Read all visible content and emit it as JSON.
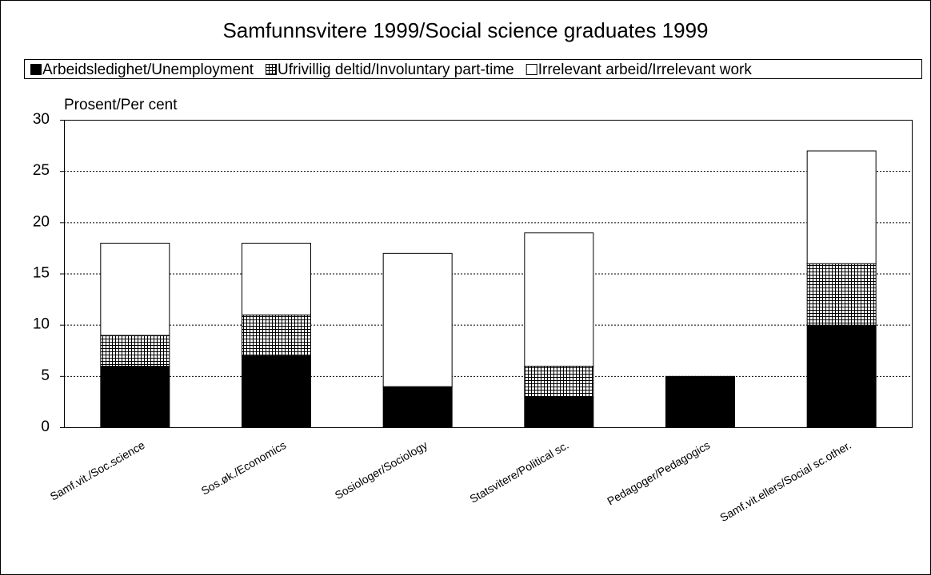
{
  "chart_data": {
    "type": "stacked_bar",
    "title": "Samfunnsvitere 1999/Social science graduates 1999",
    "y_label": "Prosent/Per cent",
    "categories": [
      "Samf.vit./Soc.science",
      "Sos.øk./Economics",
      "Sosiologer/Sociology",
      "Statsvitere/Political sc.",
      "Pedagoger/Pedagogics",
      "Samf.vit.ellers/Social sc.other."
    ],
    "series": [
      {
        "name": "Arbeidsledighet/Unemployment",
        "color": "#000000",
        "values": [
          6,
          7,
          4,
          3,
          5,
          10
        ]
      },
      {
        "name": "Ufrivillig deltid/Involuntary part-time",
        "color": "#000000",
        "hatch": true,
        "values": [
          3,
          4,
          0,
          3,
          0,
          6
        ]
      },
      {
        "name": "Irrelevant arbeid/Irrelevant work",
        "color": "#ffffff",
        "values": [
          9,
          7,
          13,
          13,
          0,
          11
        ]
      }
    ],
    "ylim": [
      0,
      30
    ],
    "yticks": [
      0,
      5,
      10,
      15,
      20,
      25,
      30
    ],
    "grid": true,
    "legend": "top"
  }
}
